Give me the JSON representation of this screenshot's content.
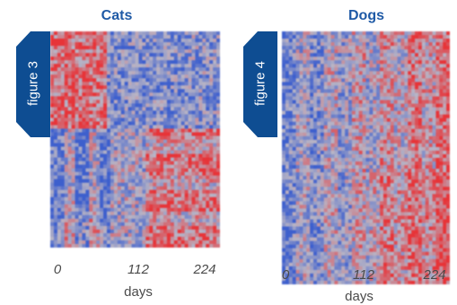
{
  "chart_data": [
    {
      "type": "heatmap",
      "title": "Cats",
      "figure_label": "figure 3",
      "xlabel": "days",
      "x_ticks": [
        "0",
        "112",
        "224"
      ],
      "xlim": [
        0,
        224
      ],
      "colors": {
        "low": "#3f5fc8",
        "mid": "#b8b4c4",
        "high": "#e0363a"
      },
      "title_color": "#1f5aa6",
      "tab_color": "#0e4d92"
    },
    {
      "type": "heatmap",
      "title": "Dogs",
      "figure_label": "figure 4",
      "xlabel": "days",
      "x_ticks": [
        "0",
        "112",
        "224"
      ],
      "xlim": [
        0,
        224
      ],
      "colors": {
        "low": "#3f5fc8",
        "mid": "#b8b4c4",
        "high": "#e0363a"
      },
      "title_color": "#1f5aa6",
      "tab_color": "#0e4d92"
    }
  ]
}
